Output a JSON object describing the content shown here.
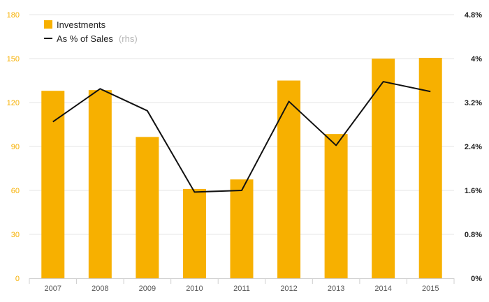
{
  "chart_data": {
    "type": "bar",
    "categories": [
      "2007",
      "2008",
      "2009",
      "2010",
      "2011",
      "2012",
      "2013",
      "2014",
      "2015"
    ],
    "series": [
      {
        "name": "Investments",
        "type": "bar",
        "axis": "left",
        "color": "#f7b000",
        "values": [
          128,
          128.5,
          96.5,
          61,
          67.5,
          135,
          98.5,
          150,
          150.5
        ]
      },
      {
        "name": "As % of Sales",
        "name_note": "(rhs)",
        "type": "line",
        "axis": "right",
        "color": "#111111",
        "values": [
          2.85,
          3.45,
          3.05,
          1.57,
          1.6,
          3.22,
          2.42,
          3.58,
          3.4
        ]
      }
    ],
    "y_left": {
      "range": [
        0,
        180
      ],
      "ticks": [
        0,
        30,
        60,
        90,
        120,
        150,
        180
      ],
      "tick_labels": [
        "0",
        "30",
        "60",
        "90",
        "120",
        "150",
        "180"
      ],
      "color": "#f7b000"
    },
    "y_right": {
      "range": [
        0,
        4.8
      ],
      "ticks": [
        0,
        0.8,
        1.6,
        2.4,
        3.2,
        4,
        4.8
      ],
      "tick_labels": [
        "0%",
        "0.8%",
        "1.6%",
        "2.4%",
        "3.2%",
        "4%",
        "4.8%"
      ]
    },
    "grid": true,
    "legend_position": "top-left",
    "title": "",
    "xlabel": "",
    "ylabel": ""
  }
}
